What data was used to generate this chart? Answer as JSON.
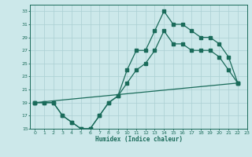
{
  "xlabel": "Humidex (Indice chaleur)",
  "bg_color": "#cce8ea",
  "grid_color": "#aacfd2",
  "line_color": "#1a6b5a",
  "xlim": [
    -0.5,
    23
  ],
  "ylim": [
    15,
    34
  ],
  "xticks": [
    0,
    1,
    2,
    3,
    4,
    5,
    6,
    7,
    8,
    9,
    10,
    11,
    12,
    13,
    14,
    15,
    16,
    17,
    18,
    19,
    20,
    21,
    22,
    23
  ],
  "yticks": [
    15,
    17,
    19,
    21,
    23,
    25,
    27,
    29,
    31,
    33
  ],
  "line1_x": [
    0,
    1,
    2,
    3,
    4,
    5,
    6,
    7,
    8,
    9,
    10,
    11,
    12,
    13,
    14,
    15,
    16,
    17,
    18,
    19,
    20,
    21,
    22
  ],
  "line1_y": [
    19,
    19,
    19,
    17,
    16,
    15,
    15,
    17,
    19,
    20,
    24,
    27,
    27,
    30,
    33,
    31,
    31,
    30,
    29,
    29,
    28,
    26,
    22
  ],
  "line2_x": [
    0,
    1,
    2,
    3,
    4,
    5,
    6,
    7,
    8,
    9,
    10,
    11,
    12,
    13,
    14,
    15,
    16,
    17,
    18,
    19,
    20,
    21,
    22
  ],
  "line2_y": [
    19,
    19,
    19,
    17,
    16,
    15,
    15,
    17,
    19,
    20,
    22,
    24,
    25,
    27,
    30,
    28,
    28,
    27,
    27,
    27,
    26,
    24,
    22
  ],
  "line3_x": [
    0,
    22
  ],
  "line3_y": [
    19,
    22
  ]
}
